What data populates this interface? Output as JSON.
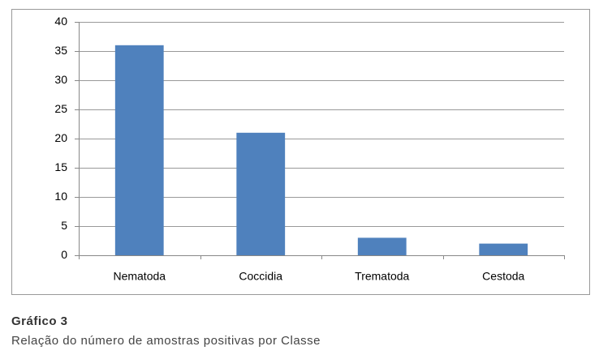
{
  "chart_data": {
    "type": "bar",
    "categories": [
      "Nematoda",
      "Coccidia",
      "Trematoda",
      "Cestoda"
    ],
    "values": [
      36,
      21,
      3,
      2
    ],
    "color": "#4f81bd",
    "ylim": [
      0,
      40
    ],
    "yticks": [
      0,
      5,
      10,
      15,
      20,
      25,
      30,
      35,
      40
    ],
    "grid": true,
    "figure_label": "Gráfico 3",
    "caption": "Relação do número de amostras positivas por Classe"
  }
}
